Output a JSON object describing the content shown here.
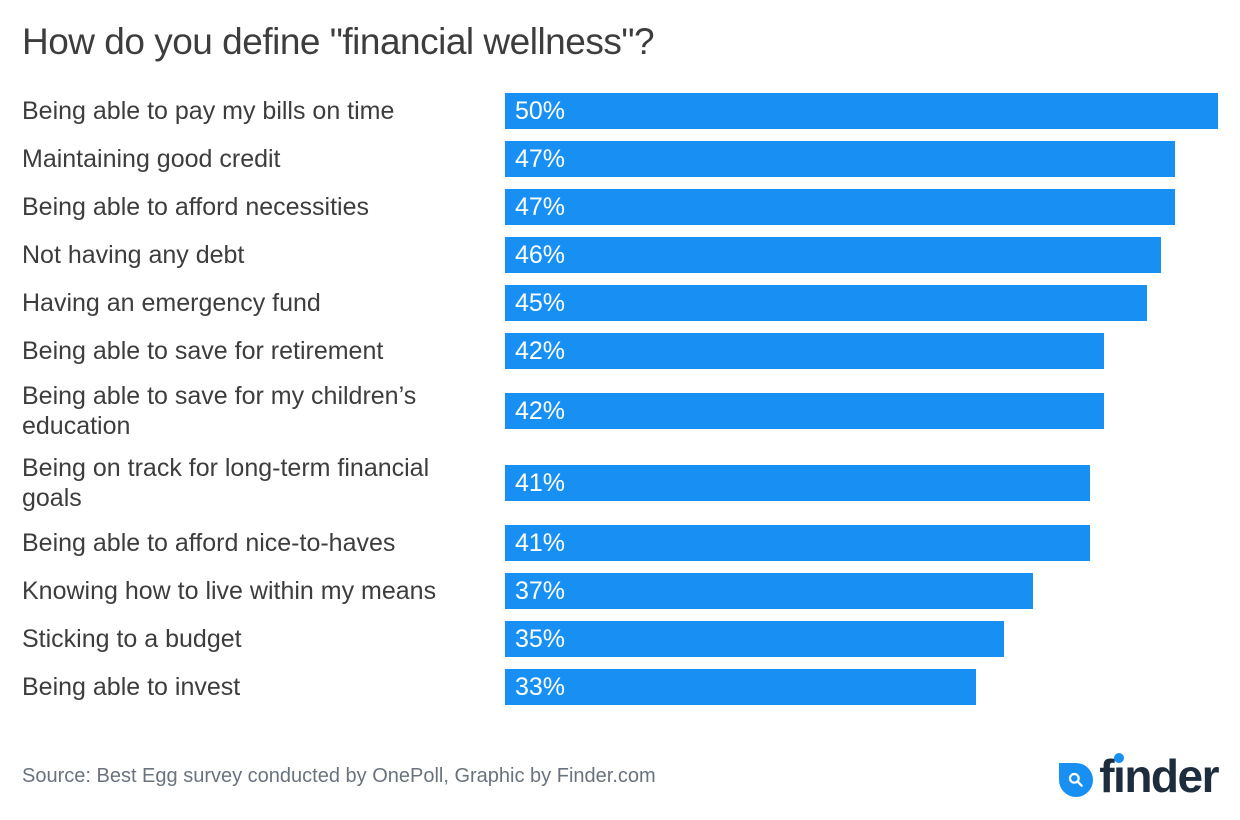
{
  "title": "How do you define \"financial wellness\"?",
  "source": "Source: Best Egg survey conducted by OnePoll, Graphic by Finder.com",
  "logo": {
    "brand": "finder",
    "icon": "magnifier-droplet-icon"
  },
  "colors": {
    "bar": "#1890f3",
    "label_text": "#3d3d3d",
    "percent_text": "#ffffff",
    "source_text": "#6a737d",
    "logo_navy": "#1e2d3d",
    "logo_blue": "#1890f3",
    "background": "#ffffff"
  },
  "chart_data": {
    "type": "bar",
    "orientation": "horizontal",
    "title": "How do you define \"financial wellness\"?",
    "unit": "%",
    "xlim": [
      0,
      50
    ],
    "grid": false,
    "legend": false,
    "categories": [
      "Being able to pay my bills on time",
      "Maintaining good credit",
      "Being able to afford necessities",
      "Not having any debt",
      "Having an emergency fund",
      "Being able to save for retirement",
      "Being able to save for my children’s education",
      "Being on track for long-term financial goals",
      "Being able to afford nice-to-haves",
      "Knowing how to live within my means",
      "Sticking to a budget",
      "Being able to invest"
    ],
    "values": [
      50,
      47,
      47,
      46,
      45,
      42,
      42,
      41,
      41,
      37,
      35,
      33
    ],
    "value_labels": [
      "50%",
      "47%",
      "47%",
      "46%",
      "45%",
      "42%",
      "42%",
      "41%",
      "41%",
      "37%",
      "35%",
      "33%"
    ]
  }
}
